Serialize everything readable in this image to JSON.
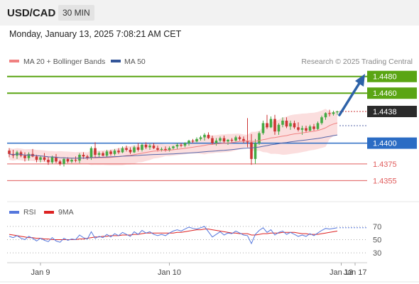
{
  "header": {
    "symbol": "USD/CAD",
    "interval": "30 MIN"
  },
  "timestamp": "Monday, January 13, 2025 7:08:21 AM CET",
  "legend": {
    "bb_label": "MA 20 + Bollinger Bands",
    "ma50_label": "MA 50",
    "credit": "Research © 2025 Trading Central",
    "rsi_label": "RSI",
    "ma9_label": "9MA"
  },
  "colors": {
    "up": "#44aa44",
    "down": "#cc3333",
    "bb_fill": "#f9d3d3",
    "ma20": "#f08080",
    "ma50": "#5566aa",
    "green_level": "#5aa514",
    "blue_level": "#2b6cc4",
    "red_level": "#e05c5c",
    "rsi": "#5577dd",
    "ma9": "#dd2222",
    "arrow": "#2d62a8"
  },
  "chart_data": [
    {
      "type": "candlestick",
      "series": [
        {
          "name": "USD/CAD",
          "ohlc": [
            [
              1.4391,
              1.4394,
              1.4383,
              1.4387
            ],
            [
              1.4387,
              1.4392,
              1.4382,
              1.4385
            ],
            [
              1.4385,
              1.4391,
              1.4381,
              1.4389
            ],
            [
              1.4389,
              1.4391,
              1.4383,
              1.4385
            ],
            [
              1.4385,
              1.4389,
              1.4378,
              1.4382
            ],
            [
              1.4382,
              1.4389,
              1.4379,
              1.4387
            ],
            [
              1.4387,
              1.4393,
              1.4383,
              1.4384
            ],
            [
              1.4384,
              1.4386,
              1.4377,
              1.438
            ],
            [
              1.438,
              1.4385,
              1.4377,
              1.4383
            ],
            [
              1.4383,
              1.4388,
              1.4378,
              1.438
            ],
            [
              1.438,
              1.4383,
              1.4374,
              1.4377
            ],
            [
              1.4377,
              1.4385,
              1.4375,
              1.4383
            ],
            [
              1.4383,
              1.4387,
              1.4376,
              1.4378
            ],
            [
              1.4378,
              1.438,
              1.4373,
              1.4375
            ],
            [
              1.4375,
              1.4383,
              1.4372,
              1.4381
            ],
            [
              1.4381,
              1.4383,
              1.4376,
              1.4378
            ],
            [
              1.4378,
              1.4382,
              1.4376,
              1.438
            ],
            [
              1.438,
              1.4384,
              1.4377,
              1.4379
            ],
            [
              1.4379,
              1.4388,
              1.4376,
              1.4386
            ],
            [
              1.4386,
              1.4389,
              1.4381,
              1.4384
            ],
            [
              1.4384,
              1.4386,
              1.438,
              1.4382
            ],
            [
              1.4382,
              1.4396,
              1.438,
              1.4394
            ],
            [
              1.4394,
              1.4401,
              1.4383,
              1.4386
            ],
            [
              1.4386,
              1.439,
              1.4383,
              1.4388
            ],
            [
              1.4388,
              1.439,
              1.4384,
              1.4385
            ],
            [
              1.4385,
              1.4392,
              1.4383,
              1.439
            ],
            [
              1.439,
              1.4392,
              1.4385,
              1.4387
            ],
            [
              1.4387,
              1.4393,
              1.4385,
              1.4391
            ],
            [
              1.4391,
              1.4394,
              1.4387,
              1.4389
            ],
            [
              1.4389,
              1.4396,
              1.4388,
              1.4394
            ],
            [
              1.4394,
              1.4397,
              1.439,
              1.4392
            ],
            [
              1.4392,
              1.4395,
              1.4387,
              1.4389
            ],
            [
              1.4389,
              1.4397,
              1.4388,
              1.4395
            ],
            [
              1.4395,
              1.44,
              1.439,
              1.4392
            ],
            [
              1.4392,
              1.44,
              1.439,
              1.4398
            ],
            [
              1.4398,
              1.4401,
              1.4393,
              1.4395
            ],
            [
              1.4395,
              1.4399,
              1.4392,
              1.4397
            ],
            [
              1.4397,
              1.44,
              1.4393,
              1.4394
            ],
            [
              1.4394,
              1.4397,
              1.439,
              1.4392
            ],
            [
              1.4392,
              1.4395,
              1.439,
              1.4393
            ],
            [
              1.4393,
              1.4396,
              1.439,
              1.4391
            ],
            [
              1.4391,
              1.4396,
              1.439,
              1.4394
            ],
            [
              1.4394,
              1.4397,
              1.4392,
              1.4396
            ],
            [
              1.4396,
              1.44,
              1.4393,
              1.4398
            ],
            [
              1.4398,
              1.44,
              1.4395,
              1.4397
            ],
            [
              1.4397,
              1.4401,
              1.4395,
              1.44
            ],
            [
              1.44,
              1.4404,
              1.4397,
              1.4403
            ],
            [
              1.4403,
              1.4405,
              1.44,
              1.4402
            ],
            [
              1.4402,
              1.4407,
              1.4401,
              1.4405
            ],
            [
              1.4405,
              1.4409,
              1.4403,
              1.4407
            ],
            [
              1.4407,
              1.4412,
              1.4403,
              1.441
            ],
            [
              1.441,
              1.4413,
              1.4405,
              1.4406
            ],
            [
              1.4406,
              1.4409,
              1.4398,
              1.44
            ],
            [
              1.44,
              1.4406,
              1.4397,
              1.4403
            ],
            [
              1.4403,
              1.4408,
              1.4401,
              1.4406
            ],
            [
              1.4406,
              1.4409,
              1.44,
              1.4402
            ],
            [
              1.4402,
              1.4405,
              1.4398,
              1.4404
            ],
            [
              1.4404,
              1.4406,
              1.4401,
              1.4403
            ],
            [
              1.4403,
              1.4409,
              1.4402,
              1.4407
            ],
            [
              1.4407,
              1.4409,
              1.4403,
              1.4405
            ],
            [
              1.4405,
              1.4408,
              1.44,
              1.4402
            ],
            [
              1.4402,
              1.443,
              1.4395,
              1.4401
            ],
            [
              1.4401,
              1.4411,
              1.4374,
              1.4381
            ],
            [
              1.4381,
              1.4405,
              1.4375,
              1.44
            ],
            [
              1.44,
              1.4414,
              1.4398,
              1.4412
            ],
            [
              1.4412,
              1.4427,
              1.441,
              1.4424
            ],
            [
              1.4424,
              1.4434,
              1.4417,
              1.4419
            ],
            [
              1.4419,
              1.4432,
              1.4418,
              1.4429
            ],
            [
              1.4429,
              1.4434,
              1.441,
              1.4414
            ],
            [
              1.4414,
              1.4424,
              1.441,
              1.4422
            ],
            [
              1.4422,
              1.4431,
              1.4419,
              1.4427
            ],
            [
              1.4427,
              1.4431,
              1.4418,
              1.442
            ],
            [
              1.442,
              1.4427,
              1.4416,
              1.4424
            ],
            [
              1.4424,
              1.4427,
              1.4417,
              1.4419
            ],
            [
              1.4419,
              1.4425,
              1.4414,
              1.4416
            ],
            [
              1.4416,
              1.4421,
              1.441,
              1.4418
            ],
            [
              1.4418,
              1.4421,
              1.4413,
              1.4415
            ],
            [
              1.4415,
              1.4422,
              1.4414,
              1.442
            ],
            [
              1.442,
              1.4423,
              1.4415,
              1.4417
            ],
            [
              1.4417,
              1.4426,
              1.4416,
              1.4424
            ],
            [
              1.4424,
              1.4433,
              1.4422,
              1.4431
            ],
            [
              1.4431,
              1.4437,
              1.4428,
              1.4436
            ],
            [
              1.4436,
              1.444,
              1.4432,
              1.4435
            ],
            [
              1.4435,
              1.4439,
              1.4433,
              1.4437
            ],
            [
              1.4437,
              1.4439,
              1.4434,
              1.4438
            ]
          ]
        }
      ],
      "levels": [
        {
          "label": "1.4480",
          "value": 1.448,
          "kind": "green"
        },
        {
          "label": "1.4460",
          "value": 1.446,
          "kind": "green"
        },
        {
          "label": "1.4438",
          "value": 1.4438,
          "kind": "last"
        },
        {
          "label": "1.4400",
          "value": 1.44,
          "kind": "blue"
        },
        {
          "label": "1.4375",
          "value": 1.4375,
          "kind": "red"
        },
        {
          "label": "1.4355",
          "value": 1.4355,
          "kind": "red"
        }
      ],
      "xticks": [
        {
          "label": "Jan 9",
          "index": 2
        },
        {
          "label": "Jan 10",
          "index": 35
        },
        {
          "label": "Jan 13",
          "index": 79
        },
        {
          "label": "Jan 17",
          "index": 88
        }
      ],
      "ylim": [
        1.434,
        1.449
      ]
    },
    {
      "type": "line",
      "yticks": [
        "70",
        "50",
        "30"
      ],
      "ylim": [
        15,
        85
      ],
      "series": [
        {
          "name": "RSI",
          "values": [
            55,
            53,
            56,
            52,
            50,
            55,
            52,
            48,
            52,
            49,
            47,
            53,
            48,
            46,
            52,
            49,
            51,
            50,
            57,
            53,
            51,
            62,
            52,
            55,
            53,
            58,
            54,
            59,
            56,
            61,
            58,
            55,
            62,
            58,
            64,
            60,
            62,
            58,
            56,
            58,
            56,
            60,
            63,
            65,
            63,
            66,
            69,
            67,
            66,
            68,
            70,
            62,
            54,
            58,
            62,
            57,
            60,
            59,
            63,
            60,
            57,
            56,
            44,
            58,
            64,
            68,
            61,
            65,
            57,
            61,
            63,
            58,
            61,
            58,
            55,
            57,
            55,
            59,
            56,
            60,
            64,
            67,
            66,
            67,
            68
          ]
        },
        {
          "name": "9MA",
          "values": [
            58,
            57,
            56,
            55,
            54,
            53,
            53,
            52,
            52,
            51,
            51,
            50,
            50,
            50,
            50,
            50,
            50,
            50,
            51,
            51,
            52,
            53,
            54,
            54,
            55,
            55,
            56,
            56,
            56,
            57,
            57,
            57,
            58,
            58,
            59,
            60,
            60,
            60,
            60,
            60,
            60,
            60,
            60,
            61,
            61,
            62,
            63,
            64,
            65,
            65,
            66,
            66,
            65,
            64,
            63,
            62,
            61,
            60,
            60,
            59,
            59,
            59,
            57,
            57,
            58,
            59,
            59,
            60,
            60,
            60,
            61,
            61,
            61,
            61,
            60,
            59,
            59,
            58,
            58,
            58,
            59,
            60,
            61,
            62,
            63
          ]
        }
      ]
    }
  ]
}
